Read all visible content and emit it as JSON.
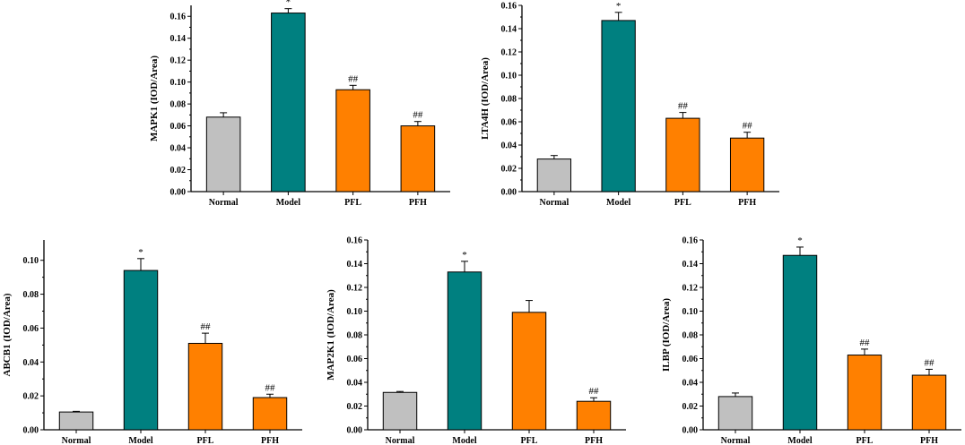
{
  "colors": {
    "Normal": "#c0c0c0",
    "Model": "#008080",
    "PFL": "#ff8000",
    "PFH": "#ff8000",
    "axis": "#000000"
  },
  "chart_data": [
    {
      "type": "bar",
      "ylabel": "MAPK1 (IOD/Area)",
      "categories": [
        "Normal",
        "Model",
        "PFL",
        "PFH"
      ],
      "values": [
        0.068,
        0.163,
        0.093,
        0.06
      ],
      "errors": [
        0.004,
        0.004,
        0.004,
        0.004
      ],
      "annotations": [
        "",
        "*",
        "##",
        "##"
      ],
      "ylim": [
        0,
        0.17
      ],
      "yticks": [
        0.0,
        0.02,
        0.04,
        0.06,
        0.08,
        0.1,
        0.12,
        0.14,
        0.16
      ],
      "tick_labels": [
        "0.00",
        "0.02",
        "0.04",
        "0.06",
        "0.08",
        "0.10",
        "0.12",
        "0.14",
        "0.16"
      ]
    },
    {
      "type": "bar",
      "ylabel": "LTA4H (IOD/Area)",
      "categories": [
        "Normal",
        "Model",
        "PFL",
        "PFH"
      ],
      "values": [
        0.028,
        0.147,
        0.063,
        0.046
      ],
      "errors": [
        0.003,
        0.007,
        0.005,
        0.005
      ],
      "annotations": [
        "",
        "*",
        "##",
        "##"
      ],
      "ylim": [
        0,
        0.16
      ],
      "yticks": [
        0.0,
        0.02,
        0.04,
        0.06,
        0.08,
        0.1,
        0.12,
        0.14,
        0.16
      ],
      "tick_labels": [
        "0.00",
        "0.02",
        "0.04",
        "0.06",
        "0.08",
        "0.10",
        "0.12",
        "0.14",
        "0.16"
      ]
    },
    {
      "type": "bar",
      "ylabel": "ABCB1 (IOD/Area)",
      "categories": [
        "Normal",
        "Model",
        "PFL",
        "PFH"
      ],
      "values": [
        0.0105,
        0.094,
        0.051,
        0.019
      ],
      "errors": [
        0.0004,
        0.007,
        0.006,
        0.002
      ],
      "annotations": [
        "",
        "*",
        "##",
        "##"
      ],
      "ylim": [
        0,
        0.112
      ],
      "yticks": [
        0.0,
        0.02,
        0.04,
        0.06,
        0.08,
        0.1
      ],
      "tick_labels": [
        "0.00",
        "0.02",
        "0.04",
        "0.06",
        "0.08",
        "0.10"
      ]
    },
    {
      "type": "bar",
      "ylabel": "MAP2K1 (IOD/Area)",
      "categories": [
        "Normal",
        "Model",
        "PFL",
        "PFH"
      ],
      "values": [
        0.0315,
        0.133,
        0.099,
        0.024
      ],
      "errors": [
        0.0008,
        0.009,
        0.01,
        0.003
      ],
      "annotations": [
        "",
        "*",
        "",
        "##"
      ],
      "ylim": [
        0,
        0.16
      ],
      "yticks": [
        0.0,
        0.02,
        0.04,
        0.06,
        0.08,
        0.1,
        0.12,
        0.14,
        0.16
      ],
      "tick_labels": [
        "0.00",
        "0.02",
        "0.04",
        "0.06",
        "0.08",
        "0.10",
        "0.12",
        "0.14",
        "0.16"
      ]
    },
    {
      "type": "bar",
      "ylabel": "ILBP (IOD/Area)",
      "categories": [
        "Normal",
        "Model",
        "PFL",
        "PFH"
      ],
      "values": [
        0.028,
        0.147,
        0.063,
        0.046
      ],
      "errors": [
        0.003,
        0.007,
        0.005,
        0.005
      ],
      "annotations": [
        "",
        "*",
        "##",
        "##"
      ],
      "ylim": [
        0,
        0.16
      ],
      "yticks": [
        0.0,
        0.02,
        0.04,
        0.06,
        0.08,
        0.1,
        0.12,
        0.14,
        0.16
      ],
      "tick_labels": [
        "0.00",
        "0.02",
        "0.04",
        "0.06",
        "0.08",
        "0.10",
        "0.12",
        "0.14",
        "0.16"
      ]
    }
  ]
}
